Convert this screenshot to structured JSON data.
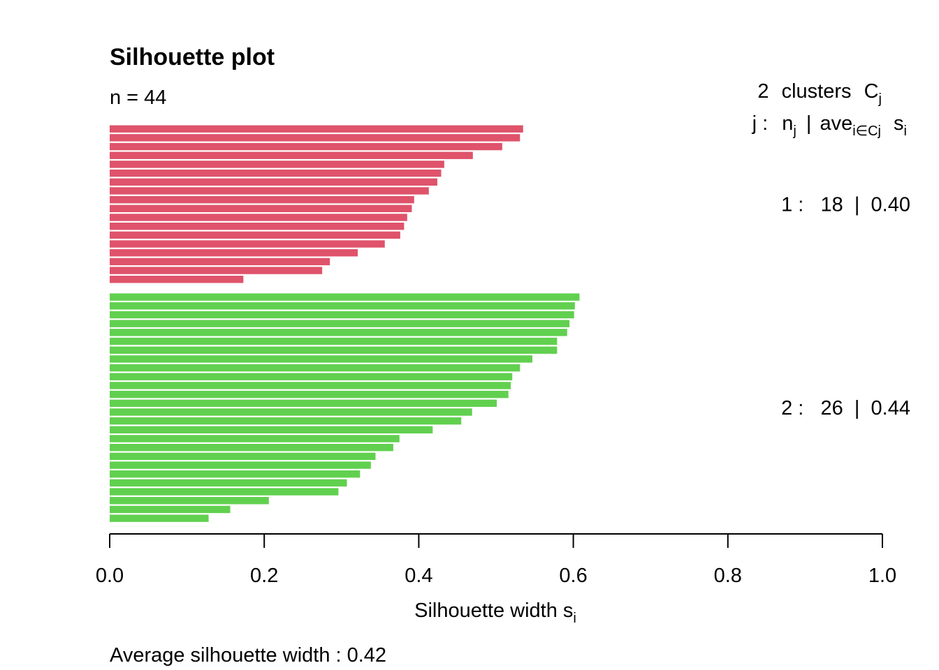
{
  "chart_data": {
    "type": "bar",
    "orientation": "horizontal",
    "title": "Silhouette plot",
    "subtitle": "n = 44",
    "xlabel": "Silhouette width s",
    "xlabel_sub": "i",
    "xlim": [
      0,
      1
    ],
    "x_ticks": [
      0,
      0.2,
      0.4,
      0.6,
      0.8,
      1
    ],
    "x_tick_labels": [
      "0.0",
      "0.2",
      "0.4",
      "0.6",
      "0.8",
      "1.0"
    ],
    "legend_header": {
      "line1": {
        "count": "2",
        "word": "clusters",
        "sym": "C",
        "sym_sub": "j"
      },
      "line2": {
        "j": "j :",
        "n": "n",
        "n_sub": "j",
        "bar": "|",
        "ave": "ave",
        "ave_sub": "i∈Cj",
        "s": "s",
        "s_sub": "i"
      }
    },
    "footer": "Average silhouette width :  0.42",
    "series": [
      {
        "label": "1 :   18  |  0.40",
        "color": "#DF536B",
        "values": [
          0.535,
          0.531,
          0.508,
          0.47,
          0.433,
          0.429,
          0.424,
          0.413,
          0.394,
          0.391,
          0.385,
          0.381,
          0.376,
          0.356,
          0.321,
          0.285,
          0.275,
          0.173
        ]
      },
      {
        "label": "2 :   26  |  0.44",
        "color": "#61D04F",
        "values": [
          0.608,
          0.602,
          0.601,
          0.595,
          0.592,
          0.579,
          0.579,
          0.547,
          0.531,
          0.521,
          0.519,
          0.516,
          0.501,
          0.469,
          0.455,
          0.418,
          0.375,
          0.367,
          0.344,
          0.338,
          0.324,
          0.307,
          0.296,
          0.206,
          0.156,
          0.128
        ]
      }
    ]
  }
}
